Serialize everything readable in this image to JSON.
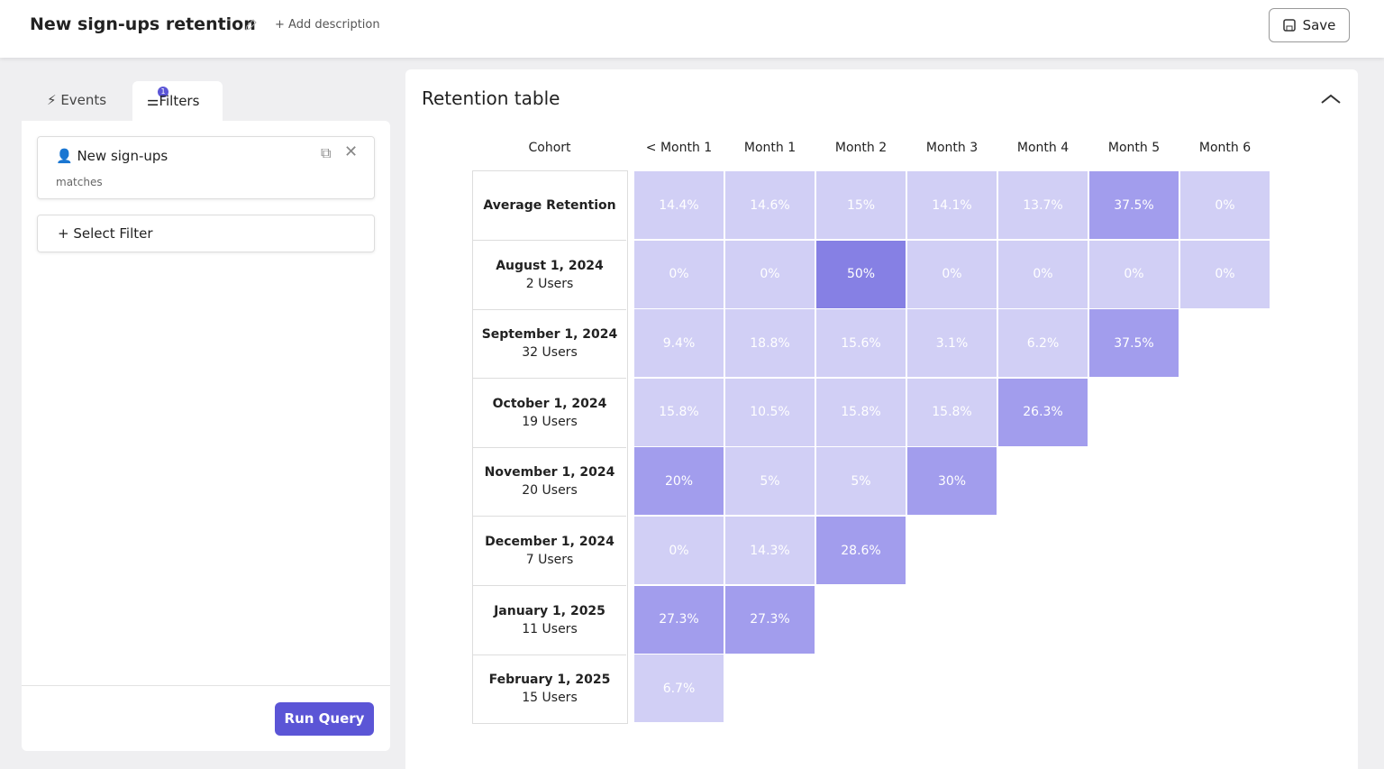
{
  "header": {
    "title": "New sign-ups retention",
    "add_description": "Add description",
    "save": "Save"
  },
  "sidebar": {
    "tabs": [
      "Events",
      "Filters"
    ],
    "filter_badge": "1",
    "filter": {
      "name": "New sign-ups",
      "operator": "matches"
    },
    "select_filter": "Select Filter",
    "run_query": "Run Query"
  },
  "retention": {
    "title": "Retention table",
    "columns": [
      "Cohort",
      "< Month 1",
      "Month 1",
      "Month 2",
      "Month 3",
      "Month 4",
      "Month 5",
      "Month 6"
    ],
    "rows": [
      {
        "cohort": "Average Retention",
        "cells": [
          "14.4%",
          "14.6%",
          "15%",
          "14.1%",
          "13.7%",
          "37.5%",
          "0%"
        ]
      },
      {
        "cohort": "August 1, 2024",
        "users": "2 Users",
        "cells": [
          "0%",
          "0%",
          "50%",
          "0%",
          "0%",
          "0%",
          "0%"
        ]
      },
      {
        "cohort": "September 1, 2024",
        "users": "32 Users",
        "cells": [
          "9.4%",
          "18.8%",
          "15.6%",
          "3.1%",
          "6.2%",
          "37.5%"
        ]
      },
      {
        "cohort": "October 1, 2024",
        "users": "19 Users",
        "cells": [
          "15.8%",
          "10.5%",
          "15.8%",
          "15.8%",
          "26.3%"
        ]
      },
      {
        "cohort": "November 1, 2024",
        "users": "20 Users",
        "cells": [
          "20%",
          "5%",
          "5%",
          "30%"
        ]
      },
      {
        "cohort": "December 1, 2024",
        "users": "7 Users",
        "cells": [
          "0%",
          "14.3%",
          "28.6%"
        ]
      },
      {
        "cohort": "January 1, 2025",
        "users": "11 Users",
        "cells": [
          "27.3%",
          "27.3%"
        ]
      },
      {
        "cohort": "February 1, 2025",
        "users": "15 Users",
        "cells": [
          "6.7%"
        ]
      }
    ]
  }
}
